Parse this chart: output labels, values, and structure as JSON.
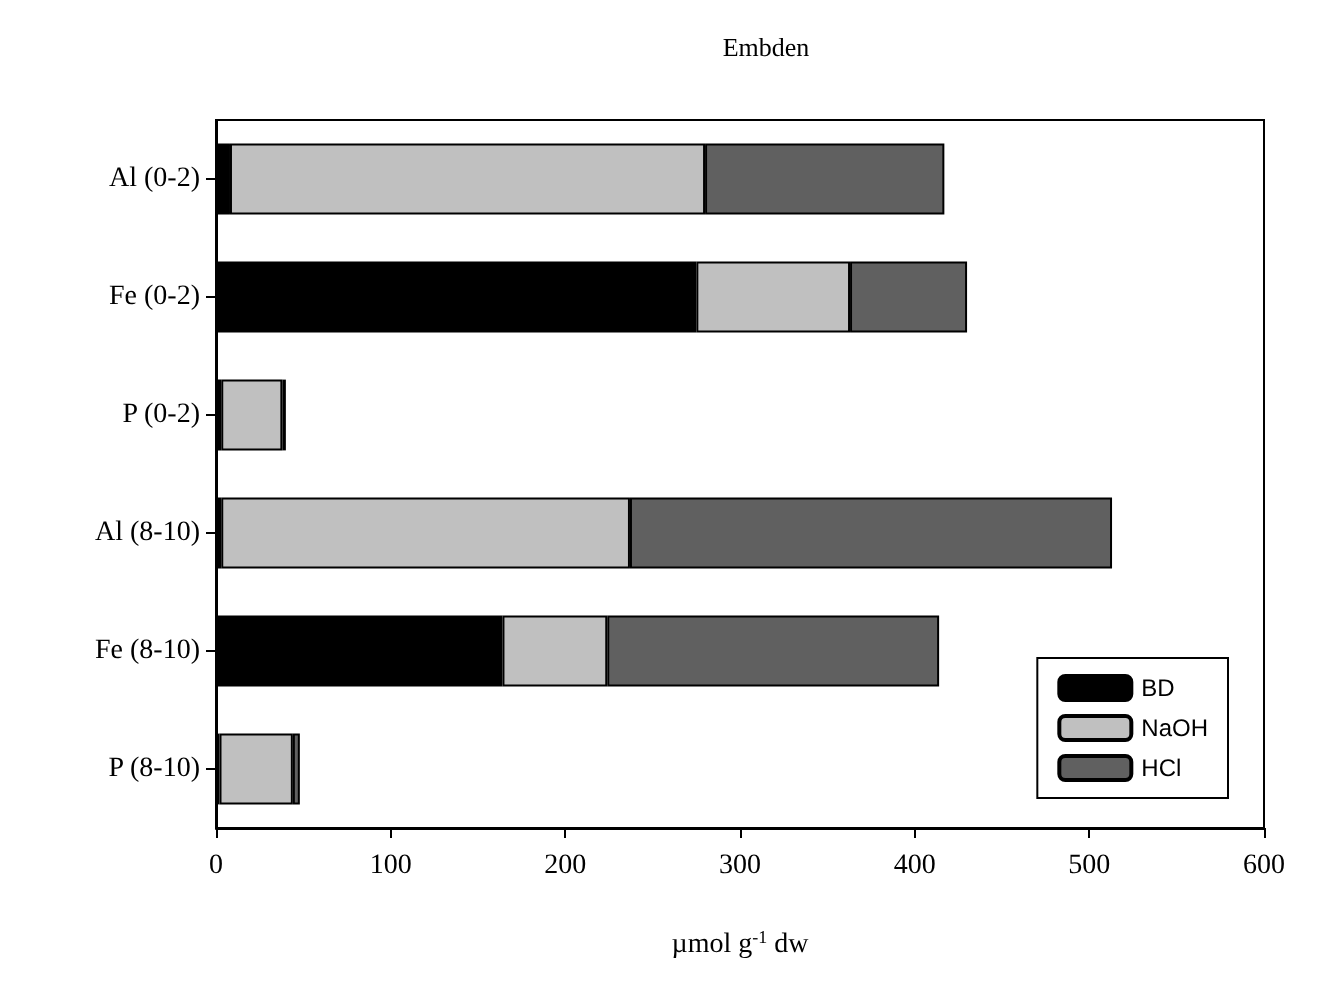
{
  "chart_data": {
    "type": "bar",
    "orientation": "horizontal",
    "stacked": true,
    "title": "Embden",
    "xlabel": "µmol g$^{-1}$ dw",
    "categories": [
      "Al (0-2)",
      "Fe (0-2)",
      "P (0-2)",
      "Al (8-10)",
      "Fe (8-10)",
      "P (8-10)"
    ],
    "series": [
      {
        "name": "BD",
        "color": "#000000",
        "values": [
          8,
          275,
          3,
          3,
          164,
          2
        ]
      },
      {
        "name": "NaOH",
        "color": "#c0c0c0",
        "values": [
          272,
          88,
          35,
          234,
          60,
          42
        ]
      },
      {
        "name": "HCl",
        "color": "#606060",
        "values": [
          137,
          67,
          2,
          276,
          190,
          4
        ]
      }
    ],
    "xlim": [
      0,
      600
    ],
    "xticks": [
      0,
      100,
      200,
      300,
      400,
      500,
      600
    ],
    "grid": false,
    "legend": "bottom right"
  }
}
